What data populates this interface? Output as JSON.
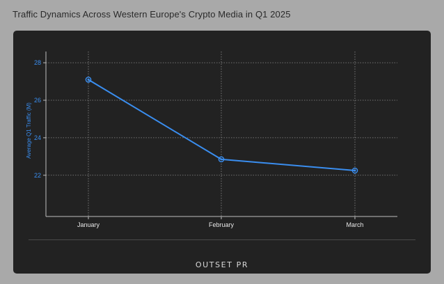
{
  "page": {
    "title": "Traffic Dynamics Across Western Europe's Crypto Media in Q1 2025",
    "brand": "OUTSET PR"
  },
  "colors": {
    "background": "#a9a9a9",
    "panel": "#222222",
    "series": "#3a8ef0",
    "grid": "#8a8a8a",
    "axis": "#bdbdbd"
  },
  "chart_data": {
    "type": "line",
    "title": "Traffic Dynamics Across Western Europe's Crypto Media in Q1 2025",
    "xlabel": "",
    "ylabel": "Average Q1 Traffic (M)",
    "categories": [
      "January",
      "February",
      "March"
    ],
    "series": [
      {
        "values": [
          27.1,
          22.85,
          22.25
        ]
      }
    ],
    "ylim": [
      19.8,
      28.6
    ],
    "yticks": [
      22,
      24,
      26,
      28
    ],
    "grid": true,
    "legend": "none"
  }
}
